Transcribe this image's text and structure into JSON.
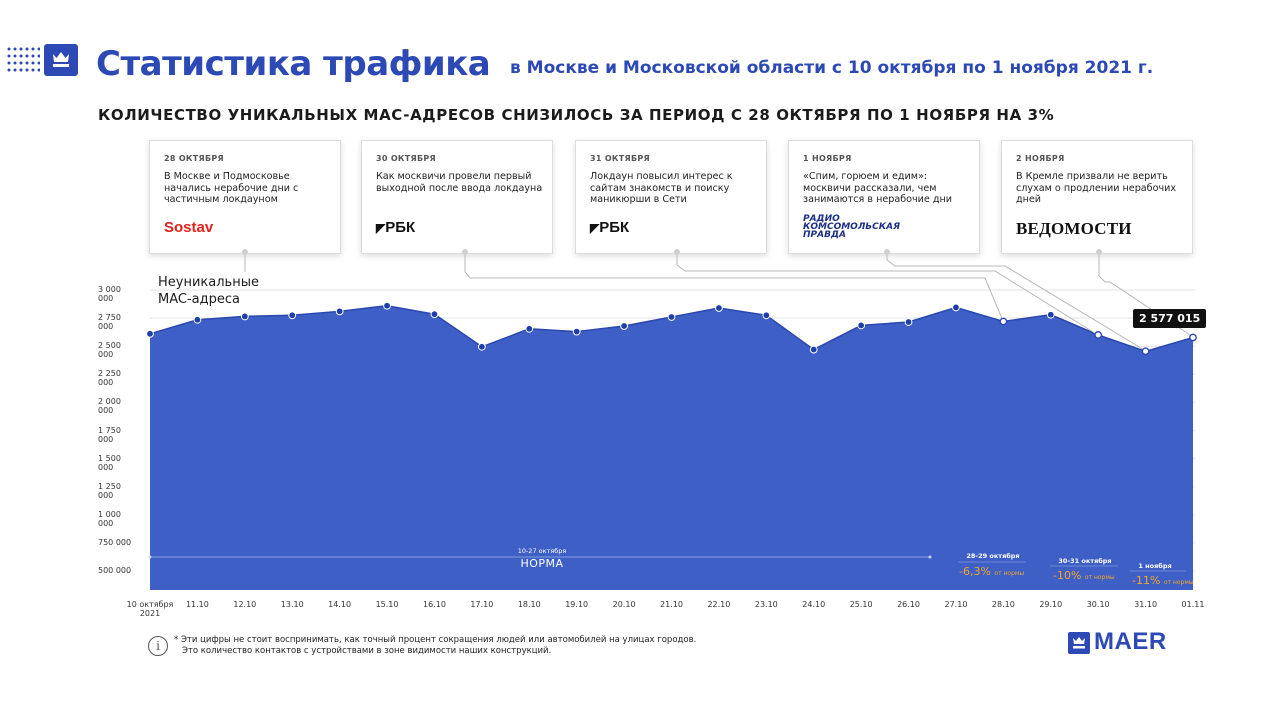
{
  "header": {
    "title": "Статистика трафика",
    "subtitle": "в Москве и Московской области с 10 октября по 1 ноября 2021 г.",
    "headline": "КОЛИЧЕСТВО УНИКАЛЬНЫХ MAC-АДРЕСОВ СНИЗИЛОСЬ ЗА ПЕРИОД С 28 ОКТЯБРЯ ПО 1 НОЯБРЯ НА 3%"
  },
  "cards": [
    {
      "date": "28 ОКТЯБРЯ",
      "text": "В Москве и Подмосковье начались нерабочие дни с частичным локдауном",
      "source": "Sostav"
    },
    {
      "date": "30 ОКТЯБРЯ",
      "text": "Как москвичи провели первый выходной после ввода локдауна",
      "source": "РБК"
    },
    {
      "date": "31 ОКТЯБРЯ",
      "text": "Локдаун повысил интерес к сайтам знакомств и поиску маникюрши в Сети",
      "source": "РБК"
    },
    {
      "date": "1 НОЯБРЯ",
      "text": "«Спим, горюем и едим»: москвичи рассказали, чем занимаются в нерабочие дни",
      "source": "РАДИО КОМСОМОЛЬСКАЯ ПРАВДА"
    },
    {
      "date": "2 НОЯБРЯ",
      "text": "В Кремле призвали не верить слухам о продлении нерабочих дней",
      "source": "ВЕДОМОСТИ"
    }
  ],
  "chart_data": {
    "type": "area",
    "series": [
      {
        "name": "Неуникальные MAC-адреса",
        "values": [
          2610000,
          2735000,
          2765000,
          2775000,
          2810000,
          2860000,
          2785000,
          2495000,
          2655000,
          2630000,
          2680000,
          2760000,
          2840000,
          2775000,
          2470000,
          2685000,
          2715000,
          2845000,
          2720000,
          2780000,
          2600000,
          2455000,
          2577015
        ]
      }
    ],
    "x": [
      "10 октября 2021",
      "11.10",
      "12.10",
      "13.10",
      "14.10",
      "15.10",
      "16.10",
      "17.10",
      "18.10",
      "19.10",
      "20.10",
      "21.10",
      "22.10",
      "23.10",
      "24.10",
      "25.10",
      "26.10",
      "27.10",
      "28.10",
      "29.10",
      "30.10",
      "31.10",
      "01.11"
    ],
    "y_ticks": [
      "3 000 000",
      "2 750 000",
      "2 500 000",
      "2 250 000",
      "2 000 000",
      "1 750 000",
      "1 500 000",
      "1 250 000",
      "1 000 000",
      "750 000",
      "500 000"
    ],
    "y_tick_values": [
      3000000,
      2750000,
      2500000,
      2250000,
      2000000,
      1750000,
      1500000,
      1250000,
      1000000,
      750000,
      500000
    ],
    "ylim": [
      300000,
      3000000
    ],
    "callout": "2 577 015",
    "annotations": {
      "norm_range": "10-27 октября",
      "norm_label": "НОРМА",
      "periods": [
        {
          "range": "28-29 октября",
          "drop": "-6,3%",
          "suffix": "от нормы"
        },
        {
          "range": "30-31 октября",
          "drop": "-10%",
          "suffix": "от нормы"
        },
        {
          "range": "1 ноября",
          "drop": "-11%",
          "suffix": "от нормы"
        }
      ]
    },
    "fill_color": "#3e5fc6",
    "line_color": "#2a48b0",
    "grid": true
  },
  "footer": {
    "note_line1": "* Эти цифры не стоит воспринимать, как точный процент сокращения людей или автомобилей на улицах городов.",
    "note_line2": "Это количество контактов с устройствами в зоне видимости наших конструкций.",
    "brand": "MAER"
  }
}
